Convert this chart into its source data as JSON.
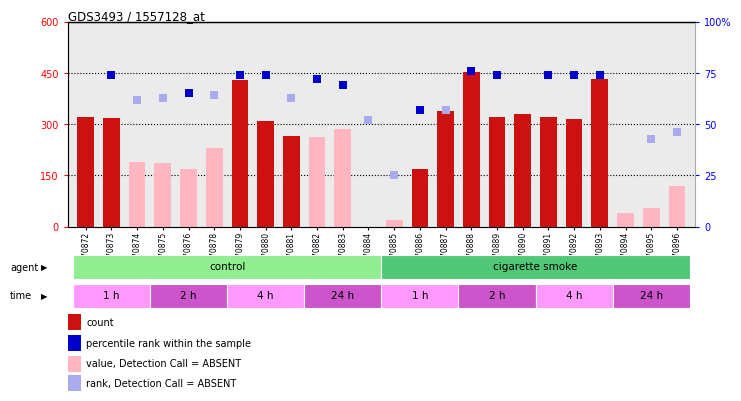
{
  "title": "GDS3493 / 1557128_at",
  "samples": [
    "GSM270872",
    "GSM270873",
    "GSM270874",
    "GSM270875",
    "GSM270876",
    "GSM270878",
    "GSM270879",
    "GSM270880",
    "GSM270881",
    "GSM270882",
    "GSM270883",
    "GSM270884",
    "GSM270885",
    "GSM270886",
    "GSM270887",
    "GSM270888",
    "GSM270889",
    "GSM270890",
    "GSM270891",
    "GSM270892",
    "GSM270893",
    "GSM270894",
    "GSM270895",
    "GSM270896"
  ],
  "count_present": [
    322,
    318,
    null,
    null,
    null,
    null,
    428,
    308,
    265,
    null,
    null,
    null,
    null,
    168,
    338,
    453,
    320,
    330,
    320,
    315,
    432,
    null,
    null,
    null
  ],
  "count_absent": [
    null,
    null,
    190,
    185,
    170,
    230,
    null,
    null,
    null,
    263,
    285,
    null,
    20,
    null,
    null,
    null,
    null,
    null,
    null,
    null,
    null,
    40,
    55,
    120
  ],
  "rank_present_pct": [
    null,
    74,
    null,
    null,
    65,
    null,
    74,
    74,
    null,
    72,
    69,
    null,
    null,
    57,
    null,
    76,
    74,
    null,
    74,
    74,
    74,
    null,
    null,
    null
  ],
  "rank_absent_pct": [
    null,
    null,
    62,
    63,
    null,
    64,
    null,
    null,
    63,
    null,
    null,
    52,
    25,
    null,
    57,
    null,
    null,
    null,
    null,
    null,
    null,
    null,
    43,
    46
  ],
  "agent_groups": [
    {
      "label": "control",
      "start": 0,
      "end": 11,
      "color": "#90EE90"
    },
    {
      "label": "cigarette smoke",
      "start": 12,
      "end": 23,
      "color": "#50C878"
    }
  ],
  "time_groups": [
    {
      "label": "1 h",
      "start": 0,
      "end": 2,
      "color": "#FF99FF"
    },
    {
      "label": "2 h",
      "start": 3,
      "end": 5,
      "color": "#CC55CC"
    },
    {
      "label": "4 h",
      "start": 6,
      "end": 8,
      "color": "#FF99FF"
    },
    {
      "label": "24 h",
      "start": 9,
      "end": 11,
      "color": "#CC55CC"
    },
    {
      "label": "1 h",
      "start": 12,
      "end": 14,
      "color": "#FF99FF"
    },
    {
      "label": "2 h",
      "start": 15,
      "end": 17,
      "color": "#CC55CC"
    },
    {
      "label": "4 h",
      "start": 18,
      "end": 20,
      "color": "#FF99FF"
    },
    {
      "label": "24 h",
      "start": 21,
      "end": 23,
      "color": "#CC55CC"
    }
  ],
  "ylim_left": [
    0,
    600
  ],
  "ylim_right": [
    0,
    100
  ],
  "yticks_left": [
    0,
    150,
    300,
    450,
    600
  ],
  "yticks_right": [
    0,
    25,
    50,
    75,
    100
  ],
  "bar_color_present": "#CC1111",
  "bar_color_absent": "#FFB6C1",
  "rank_color_present": "#0000CC",
  "rank_color_absent": "#AAAAEE",
  "bg_color": "#FFFFFF",
  "plot_bg": "#EBEBEB",
  "legend_items": [
    {
      "label": "count",
      "color": "#CC1111"
    },
    {
      "label": "percentile rank within the sample",
      "color": "#0000CC"
    },
    {
      "label": "value, Detection Call = ABSENT",
      "color": "#FFB6C1"
    },
    {
      "label": "rank, Detection Call = ABSENT",
      "color": "#AAAAEE"
    }
  ]
}
